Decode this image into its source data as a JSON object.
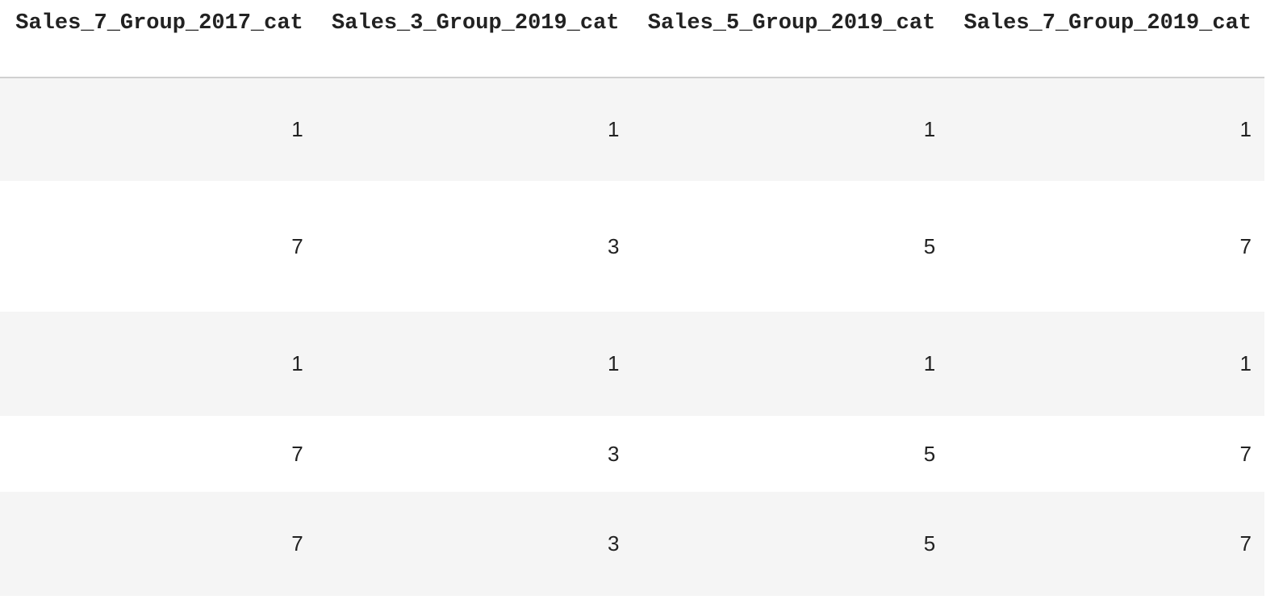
{
  "table": {
    "columns": [
      "Sales_7_Group_2017_cat",
      "Sales_3_Group_2019_cat",
      "Sales_5_Group_2019_cat",
      "Sales_7_Group_2019_cat"
    ],
    "rows": [
      [
        1,
        1,
        1,
        1
      ],
      [
        7,
        3,
        5,
        7
      ],
      [
        1,
        1,
        1,
        1
      ],
      [
        7,
        3,
        5,
        7
      ],
      [
        7,
        3,
        5,
        7
      ]
    ]
  }
}
